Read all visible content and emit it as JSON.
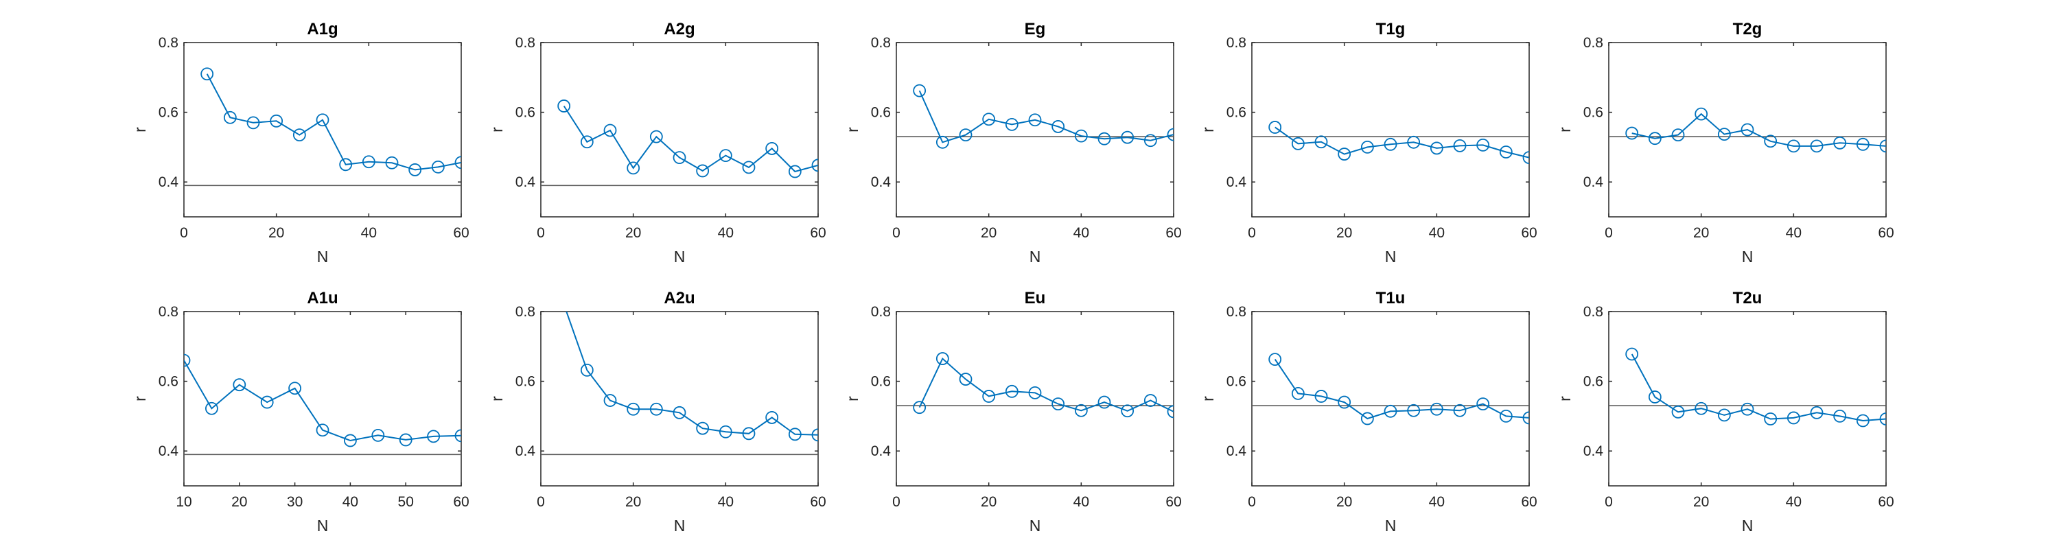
{
  "chart_data": [
    {
      "type": "line",
      "title": "A1g",
      "xlabel": "N",
      "ylabel": "r",
      "xlim": [
        0,
        60
      ],
      "ylim": [
        0.3,
        0.8
      ],
      "xticks": [
        "0",
        "20",
        "40",
        "60"
      ],
      "yticks": [
        "0.4",
        "0.6",
        "0.8"
      ],
      "reference_y": 0.39,
      "x": [
        5,
        10,
        15,
        20,
        25,
        30,
        35,
        40,
        45,
        50,
        55,
        60
      ],
      "y": [
        0.71,
        0.585,
        0.57,
        0.575,
        0.535,
        0.578,
        0.45,
        0.458,
        0.455,
        0.435,
        0.443,
        0.456
      ]
    },
    {
      "type": "line",
      "title": "A2g",
      "xlabel": "N",
      "ylabel": "r",
      "xlim": [
        0,
        60
      ],
      "ylim": [
        0.3,
        0.8
      ],
      "xticks": [
        "0",
        "20",
        "40",
        "60"
      ],
      "yticks": [
        "0.4",
        "0.6",
        "0.8"
      ],
      "reference_y": 0.39,
      "x": [
        5,
        10,
        15,
        20,
        25,
        30,
        35,
        40,
        45,
        50,
        55,
        60
      ],
      "y": [
        0.618,
        0.515,
        0.548,
        0.44,
        0.53,
        0.47,
        0.432,
        0.476,
        0.442,
        0.496,
        0.43,
        0.448
      ]
    },
    {
      "type": "line",
      "title": "Eg",
      "xlabel": "N",
      "ylabel": "r",
      "xlim": [
        0,
        60
      ],
      "ylim": [
        0.3,
        0.8
      ],
      "xticks": [
        "0",
        "20",
        "40",
        "60"
      ],
      "yticks": [
        "0.4",
        "0.6",
        "0.8"
      ],
      "reference_y": 0.53,
      "x": [
        5,
        10,
        15,
        20,
        25,
        30,
        35,
        40,
        45,
        50,
        55,
        60
      ],
      "y": [
        0.662,
        0.514,
        0.535,
        0.58,
        0.565,
        0.578,
        0.559,
        0.532,
        0.524,
        0.528,
        0.519,
        0.536
      ]
    },
    {
      "type": "line",
      "title": "T1g",
      "xlabel": "N",
      "ylabel": "r",
      "xlim": [
        0,
        60
      ],
      "ylim": [
        0.3,
        0.8
      ],
      "xticks": [
        "0",
        "20",
        "40",
        "60"
      ],
      "yticks": [
        "0.4",
        "0.6",
        "0.8"
      ],
      "reference_y": 0.53,
      "x": [
        5,
        10,
        15,
        20,
        25,
        30,
        35,
        40,
        45,
        50,
        55,
        60
      ],
      "y": [
        0.557,
        0.51,
        0.515,
        0.48,
        0.5,
        0.508,
        0.514,
        0.497,
        0.504,
        0.506,
        0.486,
        0.47
      ]
    },
    {
      "type": "line",
      "title": "T2g",
      "xlabel": "N",
      "ylabel": "r",
      "xlim": [
        0,
        60
      ],
      "ylim": [
        0.3,
        0.8
      ],
      "xticks": [
        "0",
        "20",
        "40",
        "60"
      ],
      "yticks": [
        "0.4",
        "0.6",
        "0.8"
      ],
      "reference_y": 0.53,
      "x": [
        5,
        10,
        15,
        20,
        25,
        30,
        35,
        40,
        45,
        50,
        55,
        60
      ],
      "y": [
        0.54,
        0.525,
        0.535,
        0.595,
        0.537,
        0.55,
        0.517,
        0.503,
        0.503,
        0.512,
        0.508,
        0.503
      ]
    },
    {
      "type": "line",
      "title": "A1u",
      "xlabel": "N",
      "ylabel": "r",
      "xlim": [
        10,
        60
      ],
      "ylim": [
        0.3,
        0.8
      ],
      "xticks": [
        "10",
        "20",
        "30",
        "40",
        "50",
        "60"
      ],
      "yticks": [
        "0.4",
        "0.6",
        "0.8"
      ],
      "reference_y": 0.39,
      "x": [
        10,
        15,
        20,
        25,
        30,
        35,
        40,
        45,
        50,
        55,
        60
      ],
      "y": [
        0.66,
        0.522,
        0.59,
        0.54,
        0.58,
        0.46,
        0.43,
        0.445,
        0.432,
        0.442,
        0.444
      ]
    },
    {
      "type": "line",
      "title": "A2u",
      "xlabel": "N",
      "ylabel": "r",
      "xlim": [
        0,
        60
      ],
      "ylim": [
        0.3,
        0.8
      ],
      "xticks": [
        "0",
        "20",
        "40",
        "60"
      ],
      "yticks": [
        "0.4",
        "0.6",
        "0.8"
      ],
      "reference_y": 0.39,
      "x": [
        5,
        10,
        15,
        20,
        25,
        30,
        35,
        40,
        45,
        50,
        55,
        60
      ],
      "y": [
        0.82,
        0.632,
        0.545,
        0.52,
        0.52,
        0.51,
        0.465,
        0.455,
        0.45,
        0.496,
        0.448,
        0.446
      ]
    },
    {
      "type": "line",
      "title": "Eu",
      "xlabel": "N",
      "ylabel": "r",
      "xlim": [
        0,
        60
      ],
      "ylim": [
        0.3,
        0.8
      ],
      "xticks": [
        "0",
        "20",
        "40",
        "60"
      ],
      "yticks": [
        "0.4",
        "0.6",
        "0.8"
      ],
      "reference_y": 0.53,
      "x": [
        5,
        10,
        15,
        20,
        25,
        30,
        35,
        40,
        45,
        50,
        55,
        60
      ],
      "y": [
        0.525,
        0.665,
        0.606,
        0.557,
        0.571,
        0.567,
        0.535,
        0.516,
        0.54,
        0.515,
        0.545,
        0.513
      ]
    },
    {
      "type": "line",
      "title": "T1u",
      "xlabel": "N",
      "ylabel": "r",
      "xlim": [
        0,
        60
      ],
      "ylim": [
        0.3,
        0.8
      ],
      "xticks": [
        "0",
        "20",
        "40",
        "60"
      ],
      "yticks": [
        "0.4",
        "0.6",
        "0.8"
      ],
      "reference_y": 0.53,
      "x": [
        5,
        10,
        15,
        20,
        25,
        30,
        35,
        40,
        45,
        50,
        55,
        60
      ],
      "y": [
        0.663,
        0.565,
        0.557,
        0.54,
        0.493,
        0.514,
        0.516,
        0.52,
        0.516,
        0.535,
        0.5,
        0.495
      ]
    },
    {
      "type": "line",
      "title": "T2u",
      "xlabel": "N",
      "ylabel": "r",
      "xlim": [
        0,
        60
      ],
      "ylim": [
        0.3,
        0.8
      ],
      "xticks": [
        "0",
        "20",
        "40",
        "60"
      ],
      "yticks": [
        "0.4",
        "0.6",
        "0.8"
      ],
      "reference_y": 0.53,
      "x": [
        5,
        10,
        15,
        20,
        25,
        30,
        35,
        40,
        45,
        50,
        55,
        60
      ],
      "y": [
        0.678,
        0.555,
        0.512,
        0.522,
        0.503,
        0.52,
        0.492,
        0.495,
        0.51,
        0.5,
        0.487,
        0.492
      ]
    }
  ],
  "colors": {
    "series": "#0072BD",
    "reference_line": "#5a5a5a",
    "axes": "#262626"
  }
}
